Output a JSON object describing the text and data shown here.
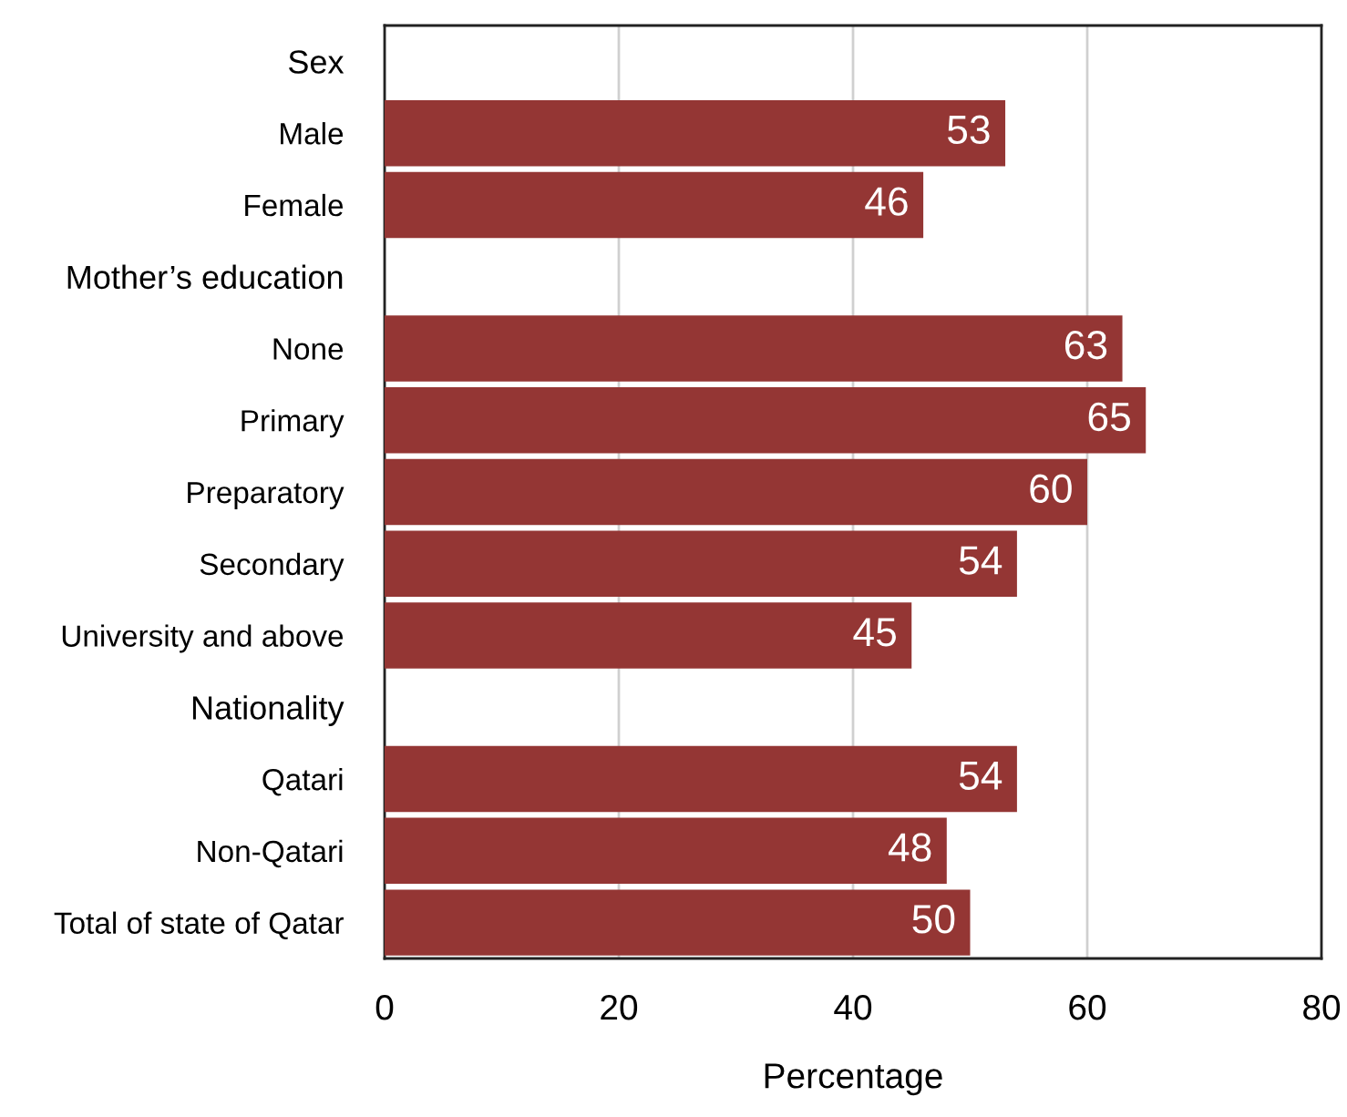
{
  "chart_data": {
    "type": "bar",
    "orientation": "horizontal",
    "xlabel": "Percentage",
    "categories": [
      "Sex",
      "Male",
      "Female",
      "Mother’s education",
      "None",
      "Primary",
      "Preparatory",
      "Secondary",
      "University and above",
      "Nationality",
      "Qatari",
      "Non-Qatari",
      "Total of state of Qatar"
    ],
    "values": [
      null,
      53,
      46,
      null,
      63,
      65,
      60,
      54,
      45,
      null,
      54,
      48,
      50
    ],
    "color": "#943634",
    "xlim": [
      0,
      80
    ],
    "xticks": [
      0,
      20,
      40,
      60,
      80
    ],
    "grid": "x",
    "data_labels": true
  }
}
